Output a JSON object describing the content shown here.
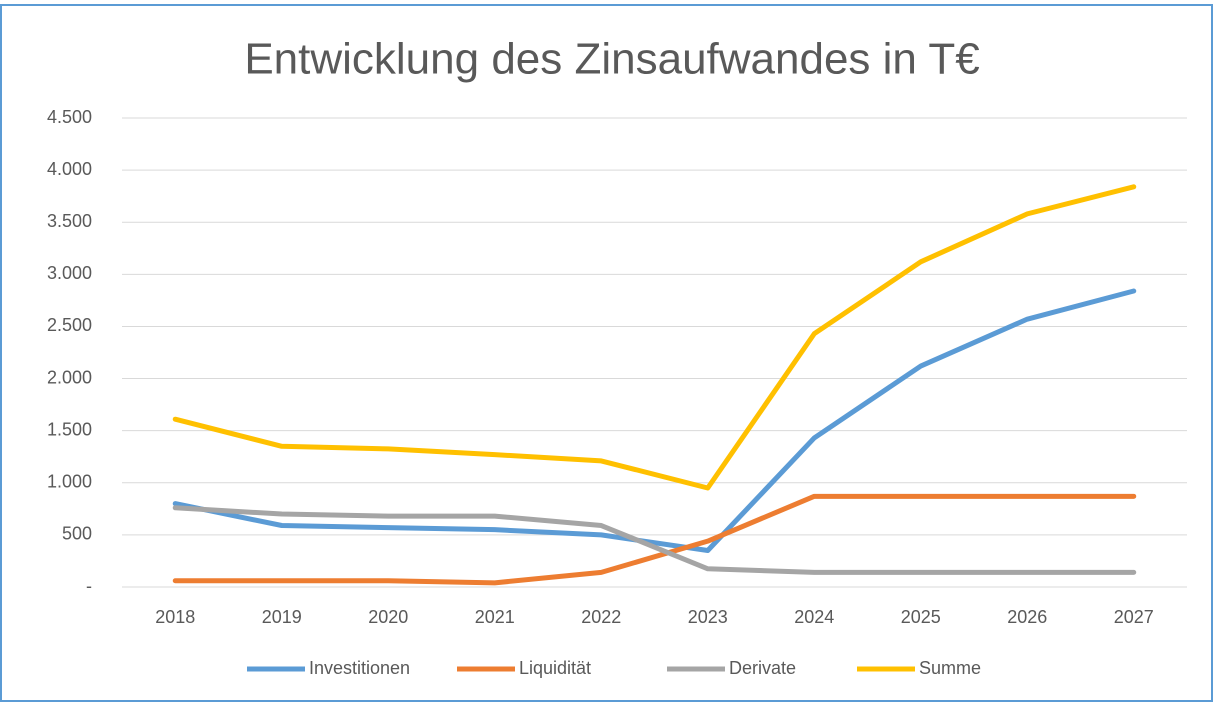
{
  "chart_data": {
    "type": "line",
    "title": "Entwicklung des Zinsaufwandes in T€",
    "categories": [
      "2018",
      "2019",
      "2020",
      "2021",
      "2022",
      "2023",
      "2024",
      "2025",
      "2026",
      "2027"
    ],
    "series": [
      {
        "name": "Investitionen",
        "color": "#5b9bd5",
        "values": [
          800,
          590,
          570,
          550,
          500,
          350,
          1430,
          2120,
          2570,
          2840
        ]
      },
      {
        "name": "Liquidität",
        "color": "#ed7d31",
        "values": [
          60,
          60,
          60,
          40,
          140,
          440,
          870,
          870,
          870,
          870
        ]
      },
      {
        "name": "Derivate",
        "color": "#a5a5a5",
        "values": [
          760,
          700,
          680,
          680,
          590,
          175,
          140,
          140,
          140,
          140
        ]
      },
      {
        "name": "Summe",
        "color": "#ffc000",
        "values": [
          1610,
          1350,
          1325,
          1270,
          1210,
          950,
          2430,
          3120,
          3580,
          3840
        ]
      }
    ],
    "ylim": [
      0,
      4500
    ],
    "yticks": [
      {
        "value": 0,
        "label": "-"
      },
      500,
      {
        "value": 1000,
        "label": "1.000"
      },
      {
        "value": 1500,
        "label": "1.500"
      },
      {
        "value": 2000,
        "label": "2.000"
      },
      {
        "value": 2500,
        "label": "2.500"
      },
      {
        "value": 3000,
        "label": "3.000"
      },
      {
        "value": 3500,
        "label": "3.500"
      },
      {
        "value": 4000,
        "label": "4.000"
      },
      {
        "value": 4500,
        "label": "4.500"
      }
    ],
    "grid": true,
    "legend": "bottom"
  }
}
